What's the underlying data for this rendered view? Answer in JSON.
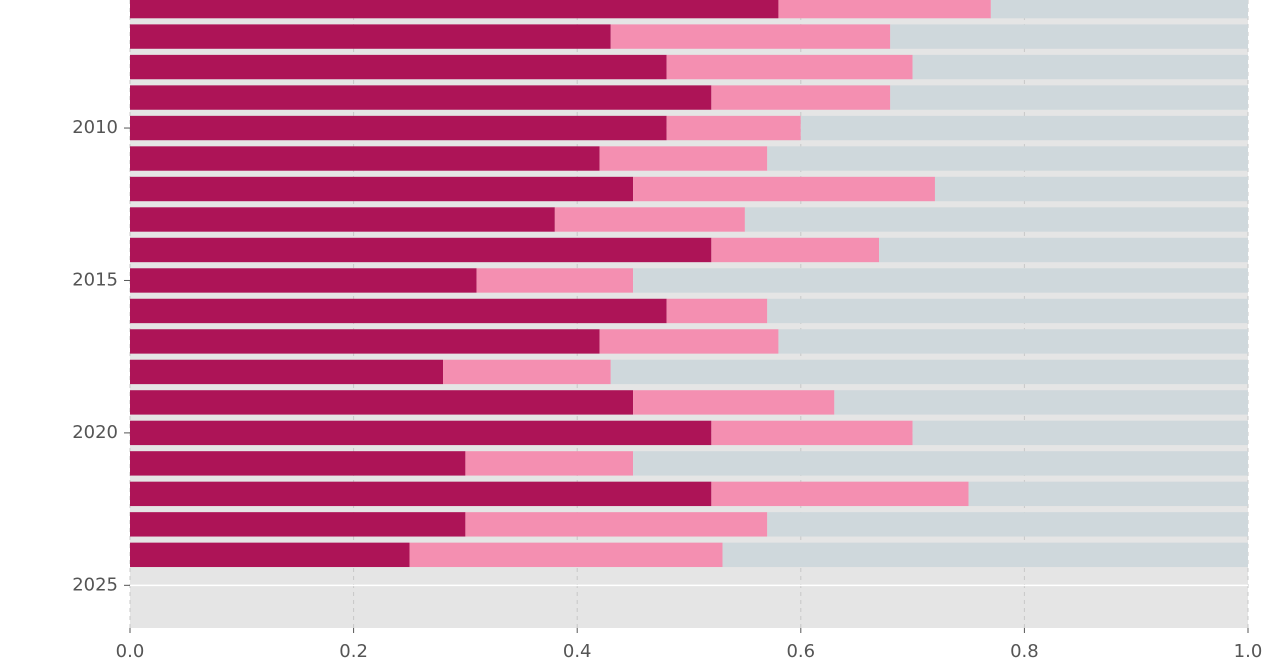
{
  "chart_data": {
    "type": "stacked_barh",
    "y": [
      2006,
      2007,
      2008,
      2009,
      2010,
      2011,
      2012,
      2013,
      2014,
      2015,
      2016,
      2017,
      2018,
      2019,
      2020,
      2021,
      2022,
      2023,
      2024
    ],
    "series": [
      {
        "color": "#ad1457",
        "values": [
          0.58,
          0.43,
          0.48,
          0.52,
          0.48,
          0.42,
          0.45,
          0.38,
          0.52,
          0.31,
          0.48,
          0.42,
          0.28,
          0.45,
          0.52,
          0.3,
          0.52,
          0.3,
          0.25
        ]
      },
      {
        "color": "#f48fb1",
        "values": [
          0.19,
          0.25,
          0.22,
          0.16,
          0.12,
          0.15,
          0.27,
          0.17,
          0.15,
          0.14,
          0.09,
          0.16,
          0.15,
          0.18,
          0.18,
          0.15,
          0.23,
          0.27,
          0.28
        ]
      },
      {
        "color": "#cfd8dc",
        "values": [
          0.23,
          0.32,
          0.3,
          0.32,
          0.4,
          0.43,
          0.28,
          0.45,
          0.33,
          0.55,
          0.43,
          0.42,
          0.57,
          0.37,
          0.3,
          0.55,
          0.25,
          0.43,
          0.47
        ]
      }
    ],
    "xlim": [
      0,
      1
    ],
    "xticks": [
      {
        "value": 0,
        "label": "0.0"
      },
      0.2,
      0.4,
      0.6,
      0.8,
      {
        "value": 1,
        "label": "1.0"
      }
    ],
    "ylim": [
      2026.4,
      2005.8
    ],
    "yticks": [
      2010,
      2015,
      2020,
      2025
    ],
    "grid": true,
    "background": "#e5e5e5"
  }
}
